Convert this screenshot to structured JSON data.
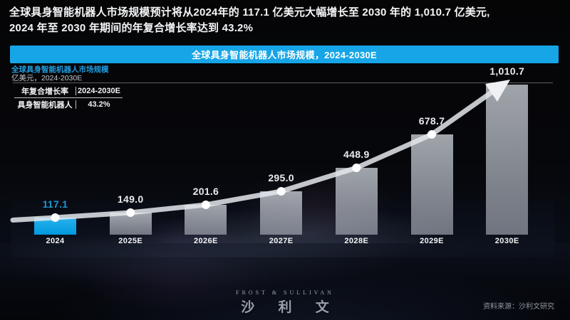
{
  "headline": {
    "line1": "全球具身智能机器人市场规模预计将从2024年的 117.1 亿美元大幅增长至 2030 年的 1,010.7 亿美元,",
    "line2": "2024 年至 2030 年期间的年复合增长率达到 43.2%"
  },
  "chart_header": {
    "label": "全球具身智能机器人市场规模，2024-2030E",
    "bar_color": "#16a5e6"
  },
  "chart": {
    "subtitle": "全球具身智能机器人市场规模",
    "subtitle_color": "#1e9fe4",
    "unit_label": "亿美元，2024-2030E",
    "cagr_table": {
      "headers": [
        "年复合增长率",
        "2024-2030E"
      ],
      "rows": [
        [
          "具身智能机器人",
          "43.2%"
        ]
      ]
    }
  },
  "chart_data": {
    "type": "bar",
    "subtype": "bar-with-trend-line-and-arrow",
    "title": "全球具身智能机器人市场规模，2024-2030E",
    "ylabel": "亿美元",
    "xlabel": "",
    "ylim": [
      0,
      1030
    ],
    "grid": false,
    "legend_position": "none",
    "categories": [
      "2024",
      "2025E",
      "2026E",
      "2027E",
      "2028E",
      "2029E",
      "2030E"
    ],
    "values": [
      117.1,
      149.0,
      201.6,
      295.0,
      448.9,
      678.7,
      1010.7
    ],
    "value_labels": [
      "117.1",
      "149.0",
      "201.6",
      "295.0",
      "448.9",
      "678.7",
      "1,010.7"
    ],
    "highlight_index": 0,
    "highlight_bar_color": "#0aa7e8",
    "highlight_label_color": "#1d96d8",
    "bar_color": "rgba(203,208,216,0.70)",
    "line_color": "rgba(228,231,236,0.85)",
    "marker_color": "#ffffff"
  },
  "footer": {
    "logo_en": "FROST & SULLIVAN",
    "logo_cn": "沙 利 文",
    "source": "资料来源：沙利文研究"
  }
}
